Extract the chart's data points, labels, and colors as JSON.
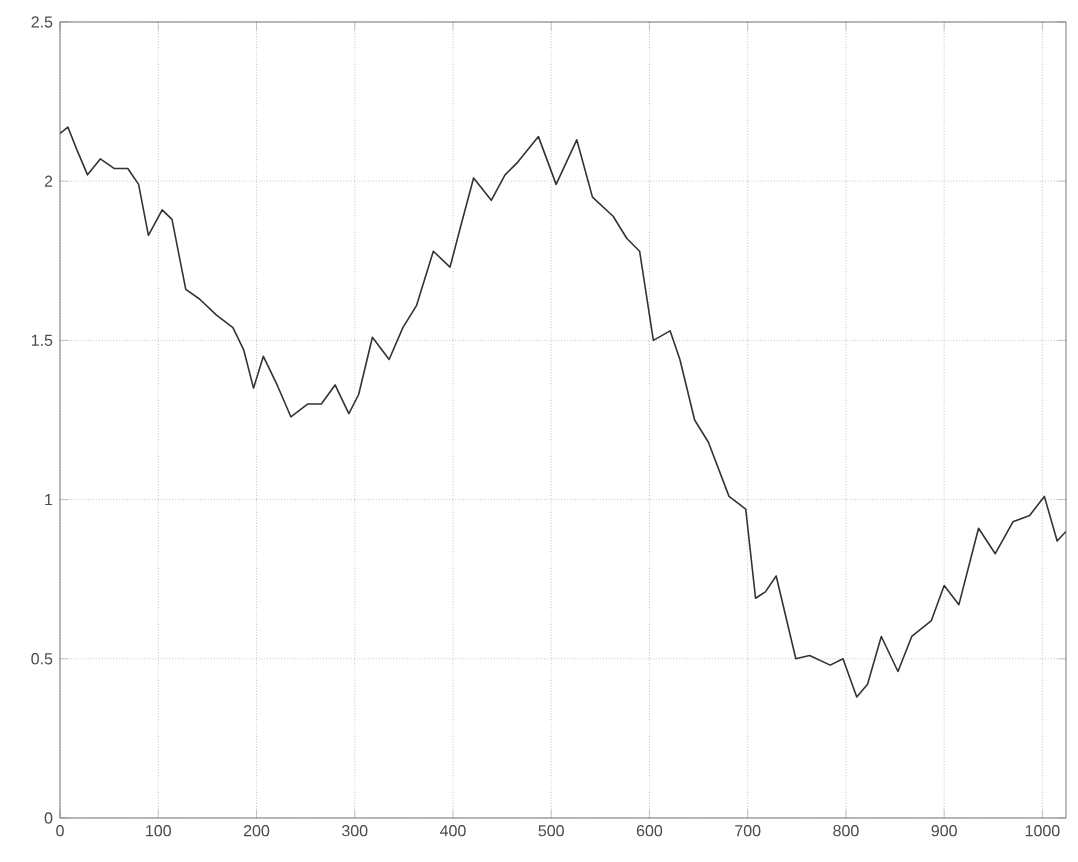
{
  "chart_data": {
    "type": "line",
    "xlim": [
      0,
      1024
    ],
    "ylim": [
      0,
      2.5
    ],
    "xticks": [
      0,
      100,
      200,
      300,
      400,
      500,
      600,
      700,
      800,
      900,
      1000
    ],
    "yticks": [
      0,
      0.5,
      1,
      1.5,
      2,
      2.5
    ],
    "grid": true,
    "line_style": "solid",
    "series": [
      {
        "color": "#333333",
        "x": [
          0,
          8,
          17,
          28,
          41,
          55,
          69,
          80,
          90,
          104,
          114,
          128,
          142,
          159,
          176,
          187,
          197,
          207,
          221,
          235,
          252,
          266,
          280,
          294,
          304,
          318,
          335,
          349,
          363,
          380,
          397,
          408,
          421,
          439,
          453,
          466,
          487,
          505,
          526,
          542,
          563,
          577,
          590,
          604,
          621,
          631,
          646,
          660,
          681,
          698,
          708,
          718,
          729,
          749,
          763,
          784,
          797,
          811,
          822,
          836,
          853,
          867,
          887,
          900,
          915,
          935,
          952,
          970,
          987,
          1002,
          1015,
          1024
        ],
        "values": [
          2.15,
          2.17,
          2.1,
          2.02,
          2.07,
          2.04,
          2.04,
          1.99,
          1.83,
          1.91,
          1.88,
          1.66,
          1.63,
          1.58,
          1.54,
          1.47,
          1.35,
          1.45,
          1.36,
          1.26,
          1.3,
          1.3,
          1.36,
          1.27,
          1.33,
          1.51,
          1.44,
          1.54,
          1.61,
          1.78,
          1.73,
          1.86,
          2.01,
          1.94,
          2.02,
          2.06,
          2.14,
          1.99,
          2.13,
          1.95,
          1.89,
          1.82,
          1.78,
          1.5,
          1.53,
          1.44,
          1.25,
          1.18,
          1.01,
          0.97,
          0.69,
          0.71,
          0.76,
          0.5,
          0.51,
          0.48,
          0.5,
          0.38,
          0.42,
          0.57,
          0.46,
          0.57,
          0.62,
          0.73,
          0.67,
          0.91,
          0.83,
          0.93,
          0.95,
          1.01,
          0.87,
          0.9
        ]
      }
    ]
  }
}
